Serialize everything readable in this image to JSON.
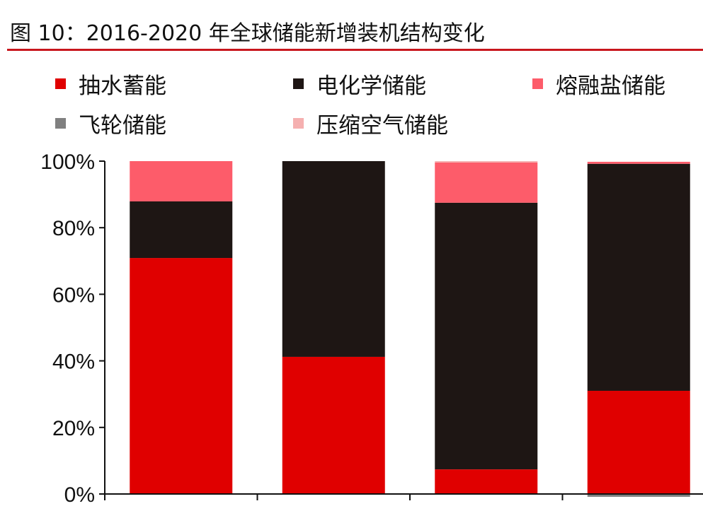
{
  "chart_data": {
    "type": "bar",
    "stacked": true,
    "title": "图 10：2016-2020 年全球储能新增装机结构变化",
    "xlabel": "",
    "ylabel": "",
    "ylim": [
      0,
      100
    ],
    "yticks": [
      "0%",
      "20%",
      "40%",
      "60%",
      "80%",
      "100%"
    ],
    "legend_placement": "top",
    "bar_count": 4,
    "series": [
      {
        "name": "抽水蓄能",
        "color": "#e00000",
        "values": [
          70.9,
          41.2,
          7.4,
          31.0
        ]
      },
      {
        "name": "电化学储能",
        "color": "#1e1614",
        "values": [
          17.0,
          58.8,
          80.1,
          68.2
        ]
      },
      {
        "name": "熔融盐储能",
        "color": "#fd5c6a",
        "values": [
          12.1,
          0,
          12.1,
          0.6
        ]
      },
      {
        "name": "飞轮储能",
        "color": "#808080",
        "values": [
          0,
          0,
          0,
          0.2
        ]
      },
      {
        "name": "压缩空气储能",
        "color": "#f5b0b0",
        "values": [
          0,
          0,
          0.4,
          0
        ]
      }
    ]
  }
}
